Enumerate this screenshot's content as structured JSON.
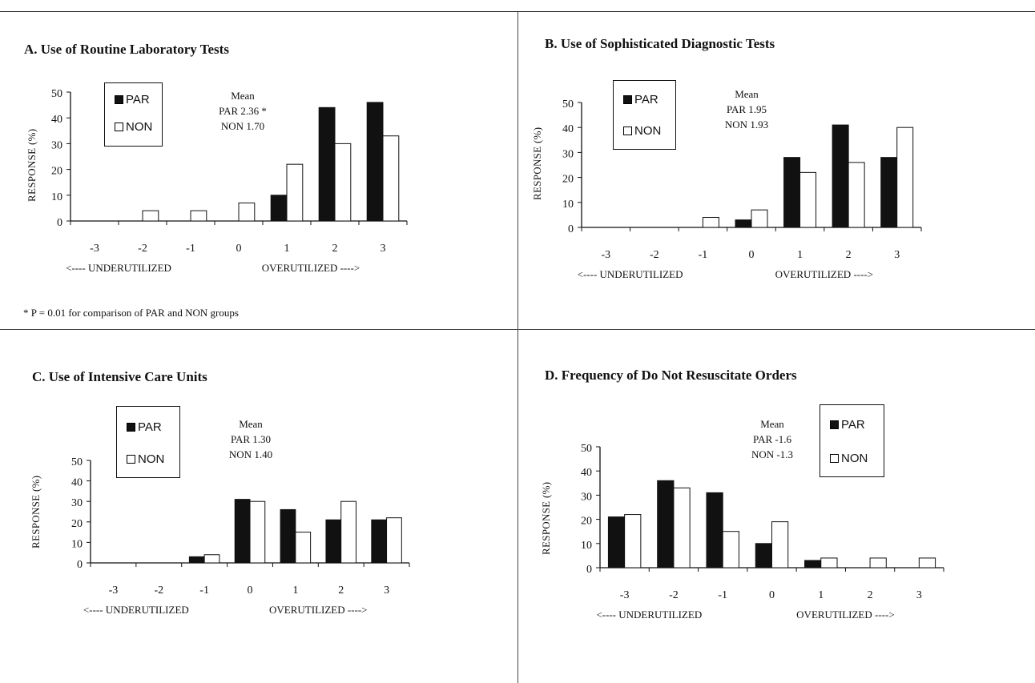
{
  "footnote": "* P = 0.01 for comparison of PAR and NON groups",
  "chart_data": [
    {
      "type": "bar",
      "title": "A.  Use of Routine Laboratory Tests",
      "ylabel": "RESPONSE (%)",
      "ylim": [
        0,
        50
      ],
      "yticks": [
        "0",
        "10",
        "20",
        "30",
        "40",
        "50"
      ],
      "categories": [
        "-3",
        "-2",
        "-1",
        "0",
        "1",
        "2",
        "3"
      ],
      "under_label": "<---- UNDERUTILIZED",
      "over_label": "OVERUTILIZED ---->",
      "series": [
        {
          "name": "PAR",
          "color": "#111111",
          "values": [
            0,
            0,
            0,
            0,
            10,
            44,
            46
          ]
        },
        {
          "name": "NON",
          "color": "#ffffff",
          "values": [
            0,
            4,
            4,
            7,
            22,
            30,
            33
          ]
        }
      ],
      "mean": {
        "heading": "Mean",
        "par": "PAR 2.36 *",
        "non": "NON 1.70"
      }
    },
    {
      "type": "bar",
      "title": "B.  Use of Sophisticated Diagnostic Tests",
      "ylabel": "RESPONSE (%)",
      "ylim": [
        0,
        50
      ],
      "yticks": [
        "0",
        "10",
        "20",
        "30",
        "40",
        "50"
      ],
      "categories": [
        "-3",
        "-2",
        "-1",
        "0",
        "1",
        "2",
        "3"
      ],
      "under_label": "<---- UNDERUTILIZED",
      "over_label": "OVERUTILIZED ---->",
      "series": [
        {
          "name": "PAR",
          "color": "#111111",
          "values": [
            0,
            0,
            0,
            3,
            28,
            41,
            28
          ]
        },
        {
          "name": "NON",
          "color": "#ffffff",
          "values": [
            0,
            0,
            4,
            7,
            22,
            26,
            40
          ]
        }
      ],
      "mean": {
        "heading": "Mean",
        "par": "PAR 1.95",
        "non": "NON 1.93"
      }
    },
    {
      "type": "bar",
      "title": "C.  Use of Intensive Care Units",
      "ylabel": "RESPONSE (%)",
      "ylim": [
        0,
        50
      ],
      "yticks": [
        "0",
        "10",
        "20",
        "30",
        "40",
        "50"
      ],
      "categories": [
        "-3",
        "-2",
        "-1",
        "0",
        "1",
        "2",
        "3"
      ],
      "under_label": "<---- UNDERUTILIZED",
      "over_label": "OVERUTILIZED ---->",
      "series": [
        {
          "name": "PAR",
          "color": "#111111",
          "values": [
            0,
            0,
            3,
            31,
            26,
            21,
            21
          ]
        },
        {
          "name": "NON",
          "color": "#ffffff",
          "values": [
            0,
            0,
            4,
            30,
            15,
            30,
            22
          ]
        }
      ],
      "mean": {
        "heading": "Mean",
        "par": "PAR 1.30",
        "non": "NON 1.40"
      }
    },
    {
      "type": "bar",
      "title": "D.  Frequency of Do Not Resuscitate Orders",
      "ylabel": "RESPONSE (%)",
      "ylim": [
        0,
        50
      ],
      "yticks": [
        "0",
        "10",
        "20",
        "30",
        "40",
        "50"
      ],
      "categories": [
        "-3",
        "-2",
        "-1",
        "0",
        "1",
        "2",
        "3"
      ],
      "under_label": "<---- UNDERUTILIZED",
      "over_label": "OVERUTILIZED ---->",
      "series": [
        {
          "name": "PAR",
          "color": "#111111",
          "values": [
            21,
            36,
            31,
            10,
            3,
            0,
            0
          ]
        },
        {
          "name": "NON",
          "color": "#ffffff",
          "values": [
            22,
            33,
            15,
            19,
            4,
            4,
            4
          ]
        }
      ],
      "mean": {
        "heading": "Mean",
        "par": "PAR -1.6",
        "non": "NON -1.3"
      }
    }
  ]
}
